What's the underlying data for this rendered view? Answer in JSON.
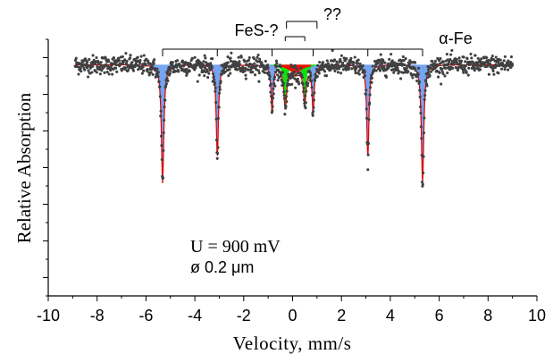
{
  "chart_data": {
    "type": "scatter",
    "title": "",
    "xlabel": "Velocity, mm/s",
    "ylabel": "Relative Absorption",
    "xlim": [
      -10,
      10
    ],
    "x_ticks": [
      -10,
      -8,
      -6,
      -4,
      -2,
      0,
      2,
      4,
      6,
      8,
      10
    ],
    "y_ticks_labeled": false,
    "grid": false,
    "baseline": 1.0,
    "ylim": [
      0.6,
      1.05
    ],
    "annotations": {
      "conditions_line1": "U = 900 mV",
      "conditions_line2": "ø 0.2 μm",
      "sextet_label": "α-Fe",
      "fes_label": "FeS-?",
      "unknown_label": "??"
    },
    "components": [
      {
        "name": "α-Fe",
        "color": "#6f9ff0",
        "line_positions": [
          -5.32,
          -3.08,
          -0.84,
          0.84,
          3.08,
          5.32
        ],
        "depths": [
          0.205,
          0.16,
          0.08,
          0.08,
          0.16,
          0.205
        ],
        "widths": [
          0.12,
          0.11,
          0.1,
          0.1,
          0.11,
          0.12
        ]
      },
      {
        "name": "FeS-?",
        "color": "#00e000",
        "line_positions": [
          -0.3,
          0.5
        ],
        "depths": [
          0.07,
          0.06
        ],
        "widths": [
          0.14,
          0.14
        ]
      },
      {
        "name": "??",
        "color": "#ff0000",
        "line_positions": [
          0.1
        ],
        "depths": [
          0.015
        ],
        "widths": [
          0.65
        ]
      }
    ],
    "envelope_color": "#e00000",
    "data_point_color": "#404040",
    "measured_points": {
      "x_range": [
        -8.9,
        9.0
      ],
      "count": 1250,
      "noise_amplitude": 0.008
    }
  }
}
